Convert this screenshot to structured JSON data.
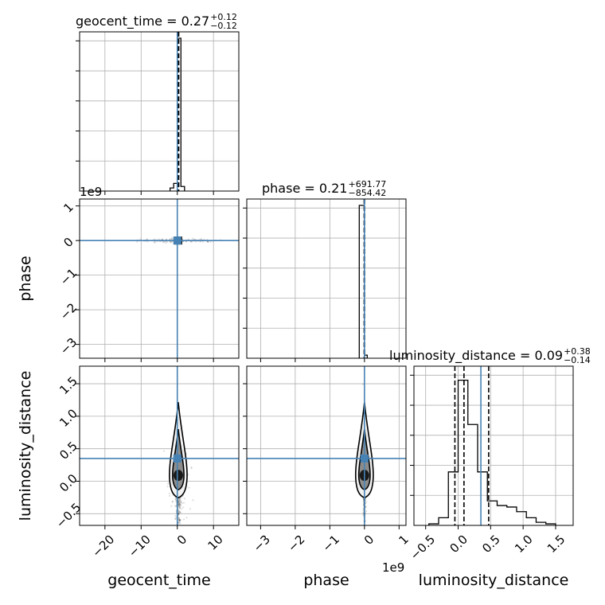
{
  "chart_data": {
    "type": "corner",
    "parameters": [
      "geocent_time",
      "phase",
      "luminosity_distance"
    ],
    "axis_labels": [
      "geocent_time",
      "phase",
      "luminosity_distance"
    ],
    "truth_color": "#4682b4",
    "titles": [
      {
        "name": "geocent_time",
        "median": "0.27",
        "upper": "+0.12",
        "lower": "−0.12"
      },
      {
        "name": "phase",
        "median": "0.21",
        "upper": "+691.77",
        "lower": "−854.42"
      },
      {
        "name": "luminosity_distance",
        "median": "0.09",
        "upper": "+0.38",
        "lower": "−0.14"
      }
    ],
    "offset_texts": {
      "phase_y": "1e9",
      "phase_x": "1e9"
    },
    "ranges": {
      "geocent_time": [
        -27,
        17
      ],
      "phase": [
        -3.4,
        1.2
      ],
      "luminosity_distance": [
        -0.68,
        1.77
      ]
    },
    "ticks": {
      "geocent_time": {
        "values": [
          -20,
          -10,
          0,
          10
        ],
        "labels": [
          "−20",
          "−10",
          "0",
          "10"
        ]
      },
      "phase": {
        "values": [
          -3,
          -2,
          -1,
          0,
          1
        ],
        "labels": [
          "−3",
          "−2",
          "−1",
          "0",
          "1"
        ]
      },
      "luminosity_distance": {
        "values": [
          -0.5,
          0.0,
          0.5,
          1.0,
          1.5
        ],
        "labels": [
          "−0.5",
          "0.0",
          "0.5",
          "1.0",
          "1.5"
        ]
      }
    },
    "truths": {
      "geocent_time": 0.0,
      "phase": 0.0,
      "luminosity_distance": 0.35
    },
    "quantiles": {
      "geocent_time": [
        0.15,
        0.27,
        0.39
      ],
      "phase": [
        -0.0085,
        0.0,
        0.0007
      ],
      "luminosity_distance": [
        -0.05,
        0.09,
        0.47
      ]
    },
    "histograms": {
      "geocent_time": {
        "edges": [
          -2.0,
          -1.0,
          0.0,
          1.0,
          2.0
        ],
        "density": [
          0.02,
          0.05,
          1.0,
          0.03
        ]
      },
      "phase": {
        "edges": [
          -0.15,
          0.0,
          0.08
        ],
        "density": [
          1.0,
          0.02
        ]
      },
      "luminosity_distance": {
        "edges": [
          -0.45,
          -0.3,
          -0.15,
          0.0,
          0.15,
          0.3,
          0.45,
          0.6,
          0.75,
          0.9,
          1.05,
          1.2,
          1.35,
          1.5
        ],
        "density": [
          0.01,
          0.05,
          0.35,
          0.95,
          0.66,
          0.35,
          0.16,
          0.13,
          0.12,
          0.09,
          0.05,
          0.02,
          0.01
        ]
      }
    },
    "grid": true
  }
}
